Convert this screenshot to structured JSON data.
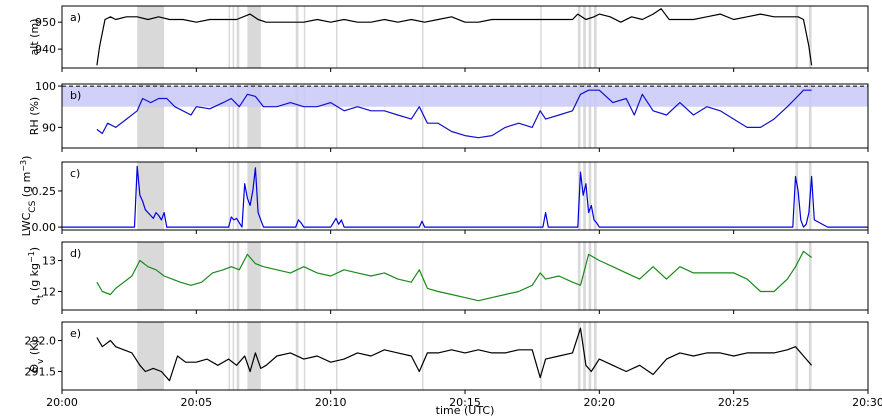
{
  "chart_data": {
    "type": "line",
    "xlabel": "time (UTC)",
    "x_tick_labels": [
      "20:00",
      "20:05",
      "20:10",
      "20:15",
      "20:20",
      "20:25",
      "20:30"
    ],
    "xlim_minutes": [
      0,
      30
    ],
    "cloud_shading_intervals_minutes": [
      [
        2.8,
        3.8
      ],
      [
        6.2,
        6.25
      ],
      [
        6.35,
        6.4
      ],
      [
        6.5,
        6.6
      ],
      [
        6.9,
        7.4
      ],
      [
        8.7,
        8.8
      ],
      [
        9.0,
        9.05
      ],
      [
        10.2,
        10.25
      ],
      [
        13.4,
        13.45
      ],
      [
        17.8,
        17.85
      ],
      [
        19.2,
        19.3
      ],
      [
        19.4,
        19.5
      ],
      [
        19.6,
        19.7
      ],
      [
        19.8,
        19.9
      ],
      [
        27.3,
        27.4
      ],
      [
        27.8,
        27.9
      ]
    ],
    "panels": [
      {
        "letter": "a)",
        "ylabel": "alt (m)",
        "yticks": [
          940,
          950
        ],
        "ylim": [
          933,
          956
        ],
        "color": "#000000",
        "series": [
          {
            "x": [
              1.3,
              1.4,
              1.6,
              1.8,
              2.0,
              2.4,
              2.8,
              3.2,
              3.6,
              4.0,
              4.5,
              5.0,
              5.5,
              6.0,
              6.5,
              7.0,
              7.3,
              7.6,
              8.0,
              8.5,
              9.0,
              9.5,
              10.0,
              10.5,
              11.0,
              11.5,
              12.0,
              12.5,
              13.0,
              13.5,
              14.0,
              14.5,
              15.0,
              15.5,
              16.0,
              16.5,
              17.0,
              17.5,
              18.0,
              18.5,
              19.0,
              19.2,
              19.5,
              19.8,
              20.0,
              20.4,
              20.8,
              21.2,
              21.6,
              22.0,
              22.3,
              22.6,
              23.0,
              23.5,
              24.0,
              24.5,
              25.0,
              25.5,
              26.0,
              26.5,
              27.0,
              27.4,
              27.6,
              27.8,
              27.9
            ],
            "y": [
              934,
              941,
              951,
              952,
              951,
              952,
              952,
              951,
              952,
              951,
              951,
              950,
              951,
              951,
              951,
              953,
              951,
              950,
              950,
              950,
              950,
              951,
              950,
              951,
              950,
              950,
              951,
              950,
              951,
              950,
              951,
              952,
              950,
              950,
              951,
              951,
              951,
              951,
              951,
              951,
              951,
              953,
              951,
              952,
              953,
              952,
              950,
              952,
              951,
              953,
              955,
              951,
              951,
              951,
              952,
              953,
              951,
              952,
              953,
              952,
              952,
              952,
              951,
              941,
              934
            ]
          }
        ]
      },
      {
        "letter": "b)",
        "ylabel": "RH (%)",
        "yticks": [
          90,
          100
        ],
        "ylim": [
          85,
          100.5
        ],
        "color": "#1010d0",
        "band": [
          95,
          100
        ],
        "dashed_line": 100,
        "series": [
          {
            "x": [
              1.3,
              1.5,
              1.7,
              2.0,
              2.4,
              2.8,
              3.0,
              3.3,
              3.6,
              3.9,
              4.2,
              4.5,
              4.8,
              5.0,
              5.5,
              6.0,
              6.3,
              6.6,
              6.9,
              7.2,
              7.5,
              8.0,
              8.5,
              9.0,
              9.5,
              10.0,
              10.5,
              11.0,
              11.5,
              12.0,
              12.5,
              13.0,
              13.3,
              13.6,
              14.0,
              14.5,
              15.0,
              15.5,
              16.0,
              16.5,
              17.0,
              17.5,
              17.8,
              18.0,
              18.5,
              19.0,
              19.3,
              19.6,
              20.0,
              20.5,
              21.0,
              21.3,
              21.6,
              22.0,
              22.5,
              23.0,
              23.5,
              24.0,
              24.5,
              25.0,
              25.5,
              26.0,
              26.5,
              27.0,
              27.3,
              27.6,
              27.9
            ],
            "y": [
              89.5,
              88.5,
              91,
              90,
              92,
              94,
              97,
              96,
              97,
              97,
              95,
              94,
              93,
              95,
              94.5,
              96,
              97,
              95,
              98,
              97.5,
              95,
              95,
              96,
              95,
              95,
              96,
              94,
              95,
              94,
              94,
              93,
              92,
              95,
              91,
              91,
              89,
              88,
              87.5,
              88,
              90,
              91,
              90,
              94,
              92,
              93,
              94,
              98,
              99,
              99,
              96,
              97,
              93,
              98,
              94,
              93,
              96,
              93,
              95,
              94,
              92,
              90,
              90,
              92,
              95,
              97,
              99,
              99
            ]
          }
        ]
      },
      {
        "letter": "c)",
        "ylabel": "LWC_CS (g m^-3)",
        "yticks": [
          0.0,
          0.25
        ],
        "ytick_labels": [
          "0.00",
          "0.25"
        ],
        "ylim": [
          -0.02,
          0.45
        ],
        "color": "#0000e0",
        "series": [
          {
            "x": [
              0,
              2.7,
              2.8,
              2.9,
              3.0,
              3.1,
              3.2,
              3.3,
              3.4,
              3.5,
              3.6,
              3.7,
              3.8,
              3.9,
              6.2,
              6.3,
              6.4,
              6.5,
              6.6,
              6.7,
              6.8,
              6.9,
              7.0,
              7.1,
              7.2,
              7.3,
              7.4,
              7.5,
              8.7,
              8.8,
              8.9,
              9.0,
              10.0,
              10.1,
              10.2,
              10.3,
              10.4,
              10.5,
              13.3,
              13.4,
              13.5,
              17.9,
              18.0,
              18.1,
              19.2,
              19.3,
              19.4,
              19.5,
              19.6,
              19.7,
              19.8,
              19.9,
              20.0,
              27.2,
              27.3,
              27.4,
              27.5,
              27.6,
              27.7,
              27.8,
              27.9,
              28.0,
              28.5,
              30
            ],
            "y": [
              0,
              0,
              0.42,
              0.22,
              0.18,
              0.12,
              0.1,
              0.08,
              0.06,
              0.1,
              0.08,
              0.05,
              0.1,
              0,
              0,
              0.07,
              0.05,
              0.06,
              0.03,
              0,
              0.3,
              0.2,
              0.15,
              0.25,
              0.41,
              0.1,
              0.05,
              0,
              0,
              0.05,
              0.03,
              0,
              0,
              0.03,
              0.06,
              0.02,
              0.05,
              0,
              0,
              0.04,
              0,
              0,
              0.1,
              0,
              0,
              0.38,
              0.22,
              0.3,
              0.1,
              0.15,
              0.05,
              0.03,
              0,
              0,
              0.35,
              0.25,
              0.05,
              0,
              0.02,
              0.1,
              0.35,
              0.05,
              0,
              0
            ]
          }
        ]
      },
      {
        "letter": "d)",
        "ylabel": "q_t (g kg^-1)",
        "yticks": [
          12,
          13
        ],
        "ylim": [
          11.4,
          13.6
        ],
        "color": "#1a8a1a",
        "series": [
          {
            "x": [
              1.3,
              1.5,
              1.8,
              2.0,
              2.3,
              2.6,
              2.9,
              3.2,
              3.5,
              3.8,
              4.1,
              4.4,
              4.8,
              5.2,
              5.6,
              6.0,
              6.3,
              6.6,
              6.9,
              7.2,
              7.5,
              8.0,
              8.5,
              9.0,
              9.5,
              10.0,
              10.5,
              11.0,
              11.5,
              12.0,
              12.5,
              13.0,
              13.3,
              13.6,
              14.0,
              14.5,
              15.0,
              15.5,
              16.0,
              16.5,
              17.0,
              17.5,
              17.8,
              18.0,
              18.5,
              19.0,
              19.3,
              19.6,
              20.0,
              20.5,
              21.0,
              21.5,
              22.0,
              22.5,
              23.0,
              23.5,
              24.0,
              24.5,
              25.0,
              25.5,
              26.0,
              26.5,
              27.0,
              27.3,
              27.6,
              27.9
            ],
            "y": [
              12.3,
              12.0,
              11.9,
              12.1,
              12.3,
              12.5,
              13.0,
              12.8,
              12.7,
              12.5,
              12.4,
              12.3,
              12.2,
              12.3,
              12.6,
              12.7,
              12.8,
              12.7,
              13.2,
              12.9,
              12.8,
              12.7,
              12.6,
              12.8,
              12.6,
              12.5,
              12.7,
              12.6,
              12.5,
              12.6,
              12.4,
              12.3,
              12.7,
              12.1,
              12.0,
              11.9,
              11.8,
              11.7,
              11.8,
              11.9,
              12.0,
              12.2,
              12.6,
              12.4,
              12.5,
              12.3,
              12.2,
              13.2,
              13.0,
              12.8,
              12.6,
              12.4,
              12.8,
              12.4,
              12.8,
              12.6,
              12.6,
              12.6,
              12.6,
              12.4,
              12.0,
              12.0,
              12.4,
              12.8,
              13.3,
              13.1
            ]
          }
        ]
      },
      {
        "letter": "e)",
        "ylabel": "Θ_v (K)",
        "yticks": [
          291.5,
          292.0
        ],
        "ytick_labels": [
          "291.5",
          "292.0"
        ],
        "ylim": [
          291.2,
          292.3
        ],
        "color": "#000000",
        "series": [
          {
            "x": [
              1.3,
              1.5,
              1.8,
              2.0,
              2.3,
              2.6,
              2.9,
              3.1,
              3.4,
              3.7,
              4.0,
              4.3,
              4.6,
              5.0,
              5.4,
              5.8,
              6.2,
              6.5,
              6.8,
              7.0,
              7.2,
              7.4,
              7.6,
              8.0,
              8.5,
              9.0,
              9.5,
              10.0,
              10.5,
              11.0,
              11.5,
              12.0,
              12.5,
              13.0,
              13.3,
              13.6,
              14.0,
              14.5,
              15.0,
              15.5,
              16.0,
              16.5,
              17.0,
              17.5,
              17.8,
              18.0,
              18.5,
              19.0,
              19.3,
              19.5,
              19.7,
              20.0,
              20.5,
              21.0,
              21.5,
              22.0,
              22.5,
              23.0,
              23.5,
              24.0,
              24.5,
              25.0,
              25.5,
              26.0,
              26.5,
              27.0,
              27.3,
              27.6,
              27.9
            ],
            "y": [
              292.05,
              291.9,
              292.0,
              291.9,
              291.85,
              291.8,
              291.6,
              291.5,
              291.55,
              291.5,
              291.35,
              291.75,
              291.65,
              291.65,
              291.7,
              291.6,
              291.7,
              291.6,
              291.75,
              291.5,
              291.8,
              291.55,
              291.6,
              291.75,
              291.8,
              291.7,
              291.75,
              291.65,
              291.7,
              291.8,
              291.75,
              291.85,
              291.8,
              291.75,
              291.5,
              291.8,
              291.8,
              291.85,
              291.8,
              291.85,
              291.8,
              291.8,
              291.85,
              291.85,
              291.4,
              291.7,
              291.75,
              291.8,
              292.2,
              291.6,
              291.5,
              291.7,
              291.6,
              291.5,
              291.6,
              291.45,
              291.7,
              291.8,
              291.75,
              291.8,
              291.8,
              291.75,
              291.8,
              291.8,
              291.8,
              291.85,
              291.9,
              291.75,
              291.6
            ]
          }
        ]
      }
    ]
  }
}
